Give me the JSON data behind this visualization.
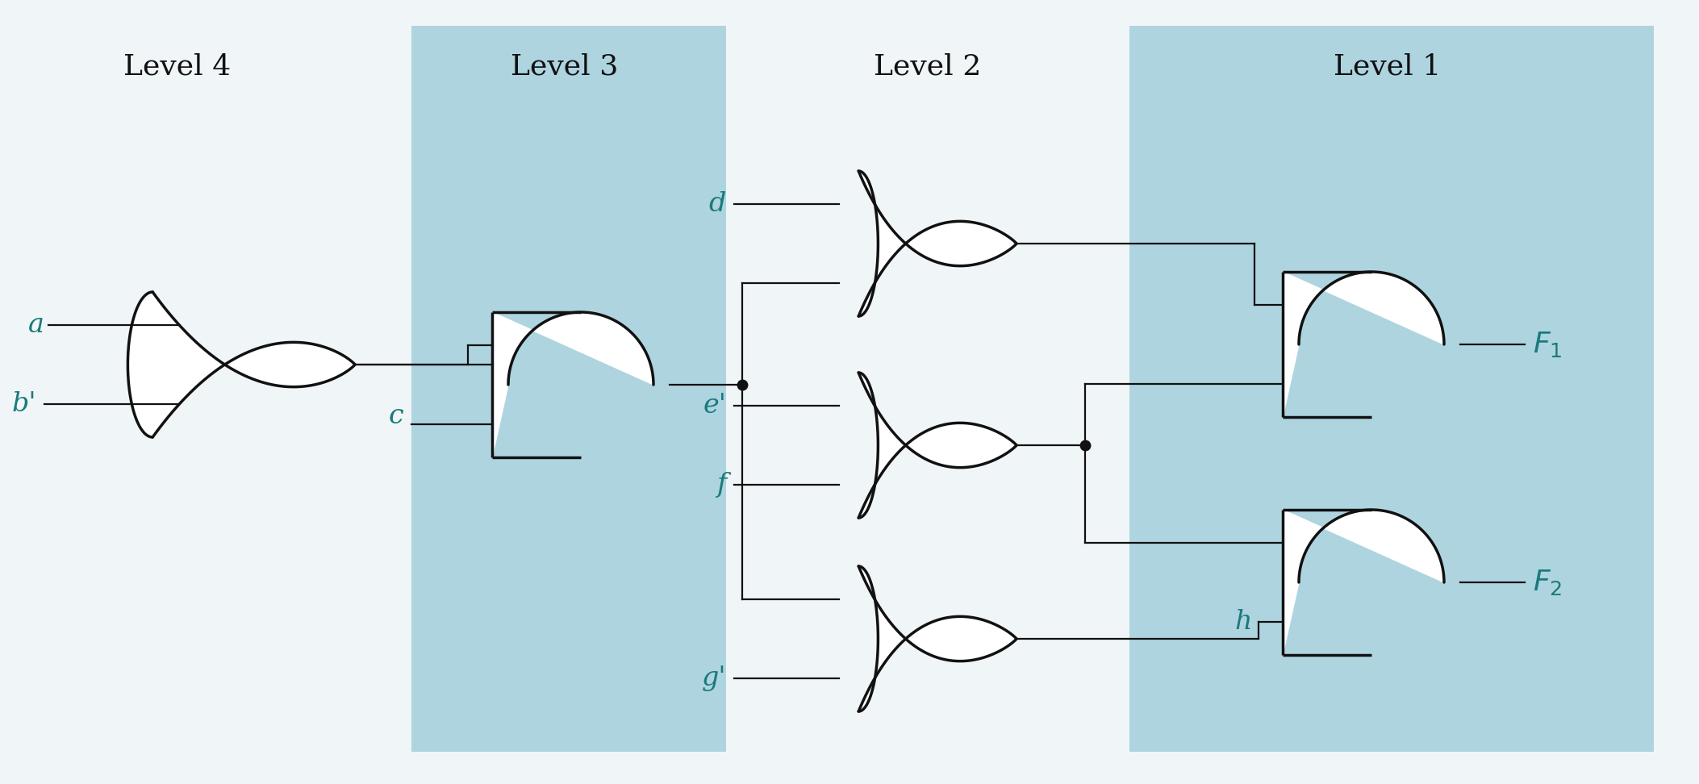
{
  "bg_color": "#f0f5f8",
  "gate_line_color": "#111111",
  "wire_color": "#111111",
  "label_color": "#1a7a7a",
  "highlight_color": "#aed4e0",
  "level_labels": [
    "Level 4",
    "Level 3",
    "Level 2",
    "Level 1"
  ],
  "lw_gate": 2.5,
  "lw_wire": 1.6
}
